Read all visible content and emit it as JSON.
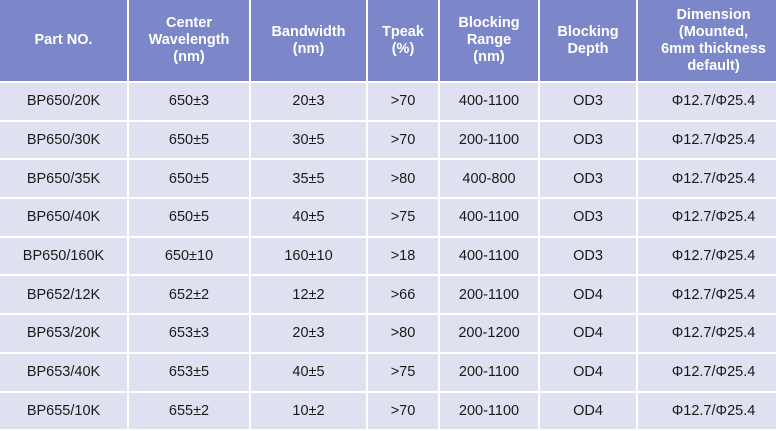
{
  "colors": {
    "header_bg": "#7b87c8",
    "row_bg": "#dfe1f0"
  },
  "headers": [
    "Part NO.",
    "Center\nWavelength\n(nm)",
    "Bandwidth\n(nm)",
    "Tpeak\n(%)",
    "Blocking\nRange\n(nm)",
    "Blocking\nDepth",
    "Dimension\n(Mounted,\n6mm thickness\ndefault)"
  ],
  "rows": [
    [
      "BP650/20K",
      "650±3",
      "20±3",
      ">70",
      "400-1100",
      "OD3",
      "Φ12.7/Φ25.4"
    ],
    [
      "BP650/30K",
      "650±5",
      "30±5",
      ">70",
      "200-1100",
      "OD3",
      "Φ12.7/Φ25.4"
    ],
    [
      "BP650/35K",
      "650±5",
      "35±5",
      ">80",
      "400-800",
      "OD3",
      "Φ12.7/Φ25.4"
    ],
    [
      "BP650/40K",
      "650±5",
      "40±5",
      ">75",
      "400-1100",
      "OD3",
      "Φ12.7/Φ25.4"
    ],
    [
      "BP650/160K",
      "650±10",
      "160±10",
      ">18",
      "400-1100",
      "OD3",
      "Φ12.7/Φ25.4"
    ],
    [
      "BP652/12K",
      "652±2",
      "12±2",
      ">66",
      "200-1100",
      "OD4",
      "Φ12.7/Φ25.4"
    ],
    [
      "BP653/20K",
      "653±3",
      "20±3",
      ">80",
      "200-1200",
      "OD4",
      "Φ12.7/Φ25.4"
    ],
    [
      "BP653/40K",
      "653±5",
      "40±5",
      ">75",
      "200-1100",
      "OD4",
      "Φ12.7/Φ25.4"
    ],
    [
      "BP655/10K",
      "655±2",
      "10±2",
      ">70",
      "200-1100",
      "OD4",
      "Φ12.7/Φ25.4"
    ]
  ]
}
